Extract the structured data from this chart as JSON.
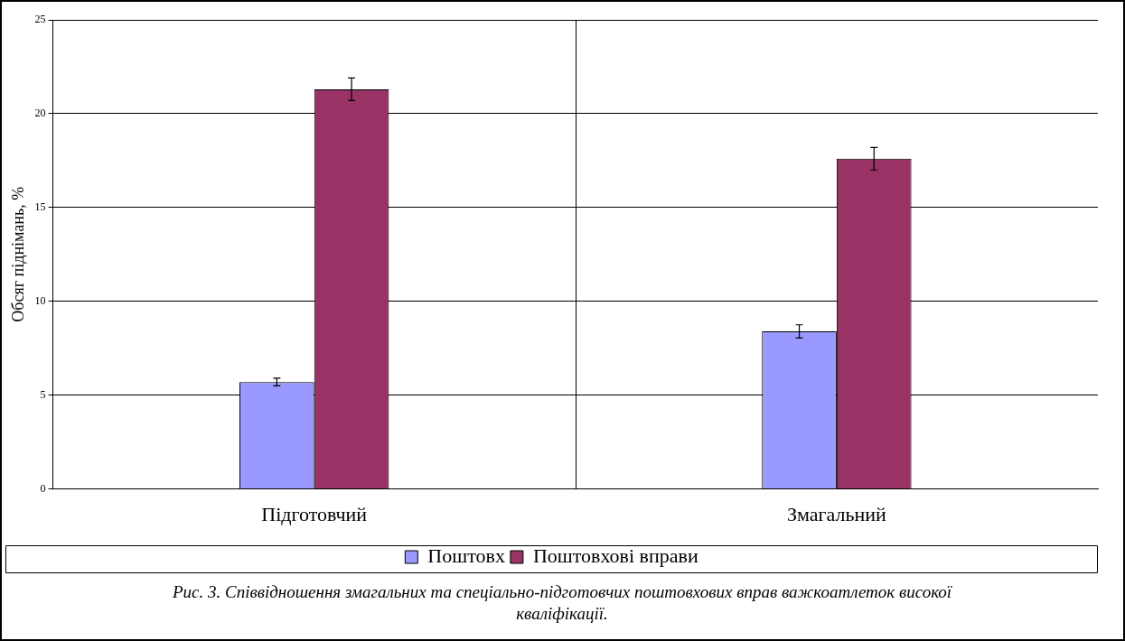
{
  "chart_data": {
    "type": "bar",
    "ylabel": "Обсяг піднімань, %",
    "categories": [
      "Підготовчий",
      "Змагальний"
    ],
    "series": [
      {
        "name": "Поштовх",
        "color": "#9999ff",
        "values": [
          5.7,
          8.4
        ],
        "errors": [
          0.2,
          0.35
        ]
      },
      {
        "name": "Поштовхові вправи",
        "color": "#993366",
        "values": [
          21.3,
          17.6
        ],
        "errors": [
          0.6,
          0.6
        ]
      }
    ],
    "ylim": [
      0,
      25
    ],
    "yticks": [
      0,
      5,
      10,
      15,
      20,
      25
    ],
    "grid": true,
    "legend": "bottom",
    "annotations": [
      "Рис. 3. Співвідношення змагальних та спеціально-підготовчих поштовхових вправ важкоатлеток високої кваліфікації."
    ]
  }
}
